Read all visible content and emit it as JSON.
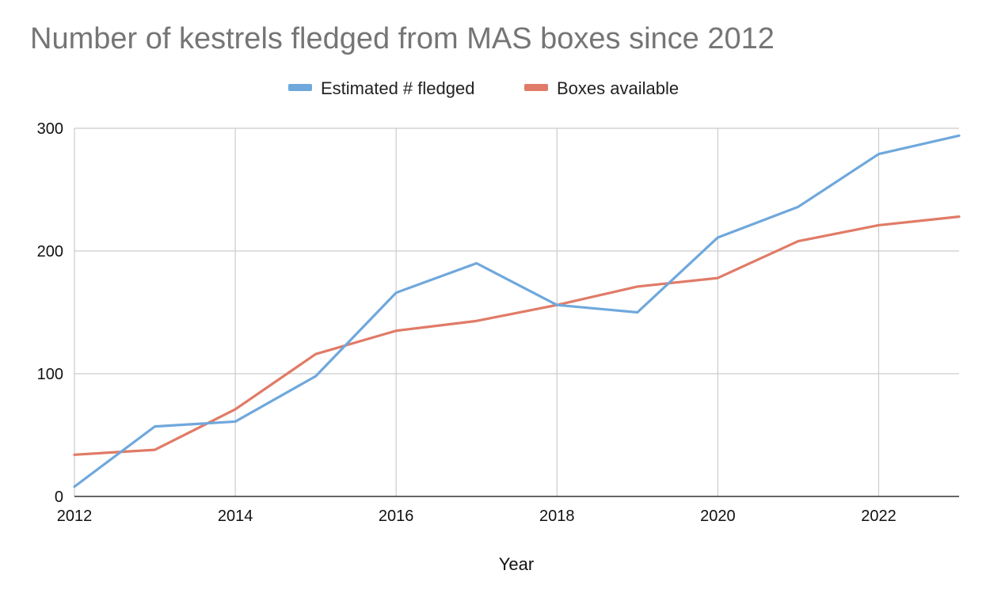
{
  "chart_data": {
    "type": "line",
    "title": "Number of kestrels fledged from MAS boxes since 2012",
    "xlabel": "Year",
    "ylabel": "",
    "x": [
      2012,
      2013,
      2014,
      2015,
      2016,
      2017,
      2018,
      2019,
      2020,
      2021,
      2022,
      2023
    ],
    "xlim": [
      2012,
      2023
    ],
    "ylim": [
      0,
      300
    ],
    "x_ticks": [
      "2012",
      "2014",
      "2016",
      "2018",
      "2020",
      "2022"
    ],
    "y_ticks": [
      "0",
      "100",
      "200",
      "300"
    ],
    "grid": true,
    "legend_position": "top-center",
    "series": [
      {
        "name": "Estimated # fledged",
        "color": "#6fa8dc",
        "values": [
          8,
          57,
          61,
          98,
          166,
          190,
          156,
          150,
          211,
          236,
          279,
          294
        ]
      },
      {
        "name": "Boxes available",
        "color": "#e07b67",
        "values": [
          34,
          38,
          71,
          116,
          135,
          143,
          156,
          171,
          178,
          208,
          221,
          228
        ]
      }
    ]
  }
}
